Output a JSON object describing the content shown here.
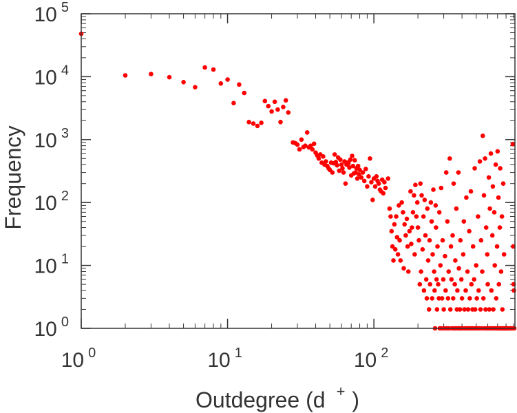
{
  "chart_data": {
    "type": "scatter",
    "xlabel": "Outdegree (d",
    "xlabel_sup": "+",
    "xlabel_close": ")",
    "ylabel": "Frequency",
    "x_scale": "log",
    "y_scale": "log",
    "xlim": [
      1,
      920
    ],
    "ylim": [
      1,
      100000
    ],
    "x_ticks": [
      {
        "base": "10",
        "exp": "0"
      },
      {
        "base": "10",
        "exp": "1"
      },
      {
        "base": "10",
        "exp": "2"
      }
    ],
    "y_ticks": [
      {
        "base": "10",
        "exp": "0"
      },
      {
        "base": "10",
        "exp": "1"
      },
      {
        "base": "10",
        "exp": "2"
      },
      {
        "base": "10",
        "exp": "3"
      },
      {
        "base": "10",
        "exp": "4"
      },
      {
        "base": "10",
        "exp": "5"
      }
    ],
    "grid": false,
    "marker_color": "#ff0000",
    "points": [
      [
        1,
        48000
      ],
      [
        2,
        10500
      ],
      [
        3,
        11000
      ],
      [
        4,
        9800
      ],
      [
        5,
        8200
      ],
      [
        6,
        6800
      ],
      [
        7,
        14000
      ],
      [
        8,
        13000
      ],
      [
        9,
        7800
      ],
      [
        10,
        9000
      ],
      [
        11,
        3800
      ],
      [
        12,
        7500
      ],
      [
        13,
        5500
      ],
      [
        14,
        1900
      ],
      [
        15,
        1800
      ],
      [
        16,
        1650
      ],
      [
        17,
        1850
      ],
      [
        18,
        4100
      ],
      [
        19,
        3400
      ],
      [
        20,
        2800
      ],
      [
        21,
        4000
      ],
      [
        22,
        3000
      ],
      [
        23,
        1900
      ],
      [
        24,
        3300
      ],
      [
        25,
        4200
      ],
      [
        26,
        2700
      ],
      [
        28,
        900
      ],
      [
        29,
        880
      ],
      [
        30,
        830
      ],
      [
        31,
        700
      ],
      [
        32,
        1000
      ],
      [
        33,
        760
      ],
      [
        34,
        800
      ],
      [
        35,
        1300
      ],
      [
        36,
        750
      ],
      [
        37,
        800
      ],
      [
        38,
        700
      ],
      [
        39,
        860
      ],
      [
        40,
        620
      ],
      [
        41,
        560
      ],
      [
        42,
        500
      ],
      [
        43,
        580
      ],
      [
        44,
        430
      ],
      [
        45,
        540
      ],
      [
        46,
        400
      ],
      [
        47,
        450
      ],
      [
        48,
        380
      ],
      [
        49,
        350
      ],
      [
        50,
        330
      ],
      [
        51,
        430
      ],
      [
        52,
        300
      ],
      [
        53,
        420
      ],
      [
        54,
        580
      ],
      [
        55,
        440
      ],
      [
        56,
        390
      ],
      [
        57,
        520
      ],
      [
        58,
        320
      ],
      [
        59,
        480
      ],
      [
        60,
        400
      ],
      [
        61,
        350
      ],
      [
        62,
        300
      ],
      [
        63,
        450
      ],
      [
        64,
        200
      ],
      [
        65,
        400
      ],
      [
        66,
        430
      ],
      [
        67,
        420
      ],
      [
        68,
        360
      ],
      [
        69,
        480
      ],
      [
        70,
        270
      ],
      [
        71,
        550
      ],
      [
        72,
        380
      ],
      [
        73,
        290
      ],
      [
        74,
        470
      ],
      [
        75,
        300
      ],
      [
        76,
        350
      ],
      [
        77,
        240
      ],
      [
        78,
        380
      ],
      [
        79,
        280
      ],
      [
        80,
        330
      ],
      [
        82,
        250
      ],
      [
        84,
        300
      ],
      [
        86,
        220
      ],
      [
        88,
        340
      ],
      [
        90,
        180
      ],
      [
        92,
        260
      ],
      [
        94,
        500
      ],
      [
        96,
        210
      ],
      [
        98,
        110
      ],
      [
        100,
        240
      ],
      [
        102,
        180
      ],
      [
        104,
        260
      ],
      [
        106,
        220
      ],
      [
        108,
        200
      ],
      [
        110,
        160
      ],
      [
        112,
        150
      ],
      [
        114,
        230
      ],
      [
        116,
        140
      ],
      [
        118,
        210
      ],
      [
        120,
        170
      ],
      [
        125,
        240
      ],
      [
        128,
        80
      ],
      [
        130,
        60
      ],
      [
        132,
        35
      ],
      [
        134,
        20
      ],
      [
        136,
        12
      ],
      [
        138,
        45
      ],
      [
        140,
        18
      ],
      [
        142,
        60
      ],
      [
        144,
        28
      ],
      [
        146,
        15
      ],
      [
        148,
        90
      ],
      [
        150,
        25
      ],
      [
        152,
        12
      ],
      [
        155,
        100
      ],
      [
        158,
        70
      ],
      [
        160,
        9
      ],
      [
        162,
        45
      ],
      [
        165,
        30
      ],
      [
        168,
        55
      ],
      [
        170,
        20
      ],
      [
        172,
        8
      ],
      [
        175,
        35
      ],
      [
        178,
        150
      ],
      [
        180,
        22
      ],
      [
        182,
        40
      ],
      [
        185,
        70
      ],
      [
        188,
        130
      ],
      [
        190,
        15
      ],
      [
        192,
        190
      ],
      [
        195,
        60
      ],
      [
        198,
        100
      ],
      [
        200,
        40
      ],
      [
        203,
        25
      ],
      [
        206,
        5
      ],
      [
        208,
        200
      ],
      [
        210,
        8
      ],
      [
        212,
        130
      ],
      [
        215,
        18
      ],
      [
        218,
        60
      ],
      [
        220,
        4
      ],
      [
        222,
        110
      ],
      [
        225,
        30
      ],
      [
        228,
        6
      ],
      [
        230,
        3
      ],
      [
        232,
        80
      ],
      [
        235,
        12
      ],
      [
        238,
        2
      ],
      [
        240,
        25
      ],
      [
        242,
        5
      ],
      [
        245,
        100
      ],
      [
        248,
        50
      ],
      [
        250,
        3
      ],
      [
        252,
        15
      ],
      [
        255,
        160
      ],
      [
        258,
        8
      ],
      [
        260,
        4
      ],
      [
        262,
        1
      ],
      [
        264,
        90
      ],
      [
        266,
        40
      ],
      [
        268,
        6
      ],
      [
        270,
        2
      ],
      [
        272,
        20
      ],
      [
        275,
        5
      ],
      [
        278,
        3
      ],
      [
        280,
        70
      ],
      [
        282,
        1
      ],
      [
        285,
        10
      ],
      [
        288,
        170
      ],
      [
        290,
        1
      ],
      [
        292,
        3
      ],
      [
        295,
        25
      ],
      [
        298,
        6
      ],
      [
        300,
        2
      ],
      [
        303,
        1
      ],
      [
        306,
        14
      ],
      [
        309,
        4
      ],
      [
        312,
        300
      ],
      [
        315,
        1
      ],
      [
        318,
        50
      ],
      [
        321,
        3
      ],
      [
        324,
        8
      ],
      [
        327,
        1
      ],
      [
        330,
        500
      ],
      [
        333,
        2
      ],
      [
        336,
        20
      ],
      [
        339,
        6
      ],
      [
        342,
        1
      ],
      [
        345,
        30
      ],
      [
        348,
        3
      ],
      [
        351,
        200
      ],
      [
        354,
        1
      ],
      [
        357,
        5
      ],
      [
        360,
        12
      ],
      [
        363,
        1
      ],
      [
        366,
        80
      ],
      [
        369,
        2
      ],
      [
        372,
        4
      ],
      [
        375,
        1
      ],
      [
        378,
        300
      ],
      [
        381,
        9
      ],
      [
        384,
        1
      ],
      [
        387,
        2
      ],
      [
        390,
        25
      ],
      [
        393,
        1
      ],
      [
        396,
        6
      ],
      [
        400,
        3
      ],
      [
        404,
        1
      ],
      [
        408,
        15
      ],
      [
        412,
        50
      ],
      [
        416,
        2
      ],
      [
        420,
        1
      ],
      [
        424,
        4
      ],
      [
        428,
        120
      ],
      [
        432,
        1
      ],
      [
        436,
        8
      ],
      [
        440,
        2
      ],
      [
        444,
        1
      ],
      [
        448,
        35
      ],
      [
        452,
        3
      ],
      [
        456,
        1
      ],
      [
        460,
        150
      ],
      [
        464,
        5
      ],
      [
        468,
        1
      ],
      [
        472,
        2
      ],
      [
        476,
        20
      ],
      [
        480,
        1
      ],
      [
        484,
        6
      ],
      [
        488,
        350
      ],
      [
        492,
        2
      ],
      [
        496,
        1
      ],
      [
        500,
        10
      ],
      [
        505,
        3
      ],
      [
        510,
        1
      ],
      [
        515,
        60
      ],
      [
        520,
        4
      ],
      [
        525,
        1
      ],
      [
        530,
        450
      ],
      [
        535,
        2
      ],
      [
        540,
        25
      ],
      [
        545,
        1
      ],
      [
        550,
        8
      ],
      [
        555,
        1150
      ],
      [
        560,
        3
      ],
      [
        565,
        130
      ],
      [
        570,
        1
      ],
      [
        575,
        500
      ],
      [
        580,
        2
      ],
      [
        585,
        40
      ],
      [
        590,
        1
      ],
      [
        595,
        15
      ],
      [
        600,
        5
      ],
      [
        605,
        1
      ],
      [
        610,
        250
      ],
      [
        615,
        2
      ],
      [
        620,
        80
      ],
      [
        625,
        1
      ],
      [
        630,
        600
      ],
      [
        635,
        4
      ],
      [
        640,
        1
      ],
      [
        645,
        30
      ],
      [
        650,
        180
      ],
      [
        655,
        2
      ],
      [
        660,
        1
      ],
      [
        665,
        70
      ],
      [
        670,
        10
      ],
      [
        675,
        1
      ],
      [
        680,
        400
      ],
      [
        685,
        3
      ],
      [
        690,
        1
      ],
      [
        695,
        20
      ],
      [
        700,
        650
      ],
      [
        705,
        1
      ],
      [
        710,
        120
      ],
      [
        715,
        5
      ],
      [
        720,
        1
      ],
      [
        725,
        40
      ],
      [
        730,
        350
      ],
      [
        735,
        1
      ],
      [
        740,
        8
      ],
      [
        745,
        1
      ],
      [
        750,
        60
      ],
      [
        755,
        2
      ],
      [
        760,
        1
      ],
      [
        765,
        200
      ],
      [
        770,
        1
      ],
      [
        775,
        15
      ],
      [
        780,
        1
      ],
      [
        790,
        1
      ],
      [
        800,
        1
      ],
      [
        810,
        1
      ],
      [
        820,
        1
      ],
      [
        840,
        1
      ],
      [
        860,
        1
      ],
      [
        880,
        1
      ],
      [
        890,
        850
      ],
      [
        895,
        20
      ],
      [
        900,
        5
      ],
      [
        905,
        4
      ],
      [
        910,
        1
      ]
    ]
  }
}
